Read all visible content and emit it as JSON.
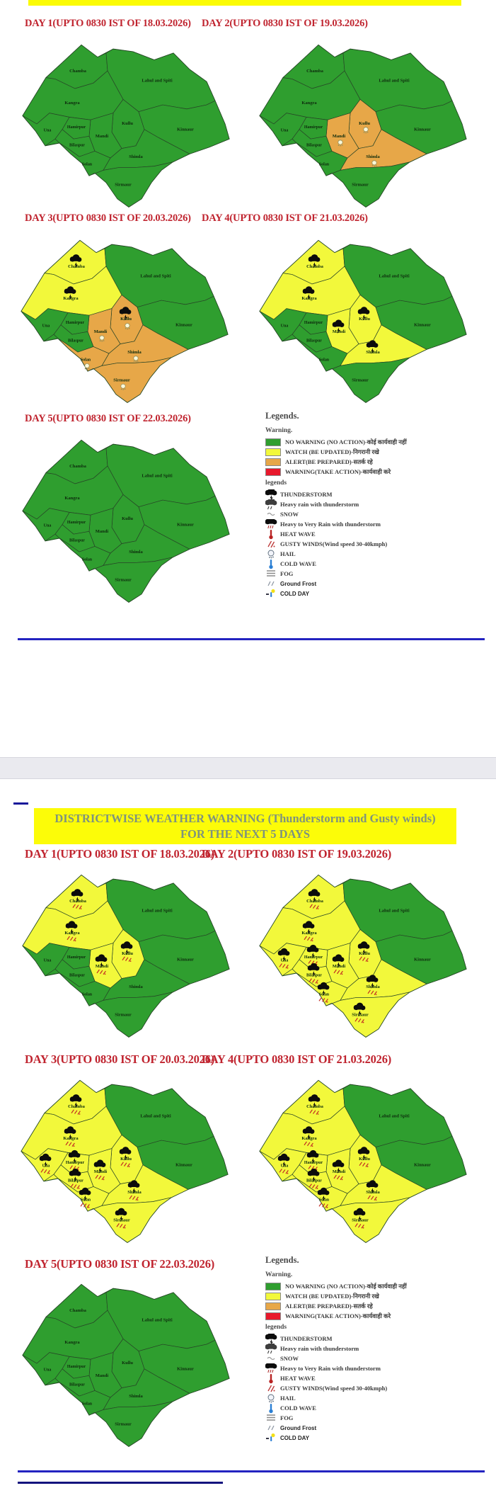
{
  "colors": {
    "green": "#2f9e2f",
    "yellow": "#f2f83b",
    "orange": "#e7a748",
    "red": "#e8182c",
    "map_border": "#1f4d1f",
    "header_red": "#c0242f",
    "banner_bg": "#fcfc08",
    "banner_text": "#7e937e",
    "blue_line": "#2323c0",
    "navy_line": "#14147e",
    "separator_gray": "#eaeaef"
  },
  "district_names": {
    "chamba": "Chamba",
    "lahul": "Lahul and Spiti",
    "kangra": "Kangra",
    "kullu": "Kullu",
    "mandi": "Mandi",
    "hamirpur": "Hamirpur",
    "una": "Una",
    "bilaspur": "Bilaspur",
    "bilaspur_short": "Bilaspur",
    "solan": "Solan",
    "shimla": "Shimla",
    "sirmaur": "Sirmaur",
    "kinnaur": "Kinnaur"
  },
  "section1": {
    "maps": [
      {
        "title": "DAY 1(UPTO 0830 IST OF 18.03.2026)",
        "status": {},
        "icons": {}
      },
      {
        "title": "DAY 2(UPTO 0830 IST OF 19.03.2026)",
        "status": {
          "kullu": "orange",
          "mandi": "orange",
          "shimla": "orange"
        },
        "icons": {
          "kullu": "hail",
          "mandi": "hail",
          "shimla": "hail"
        }
      },
      {
        "title": "DAY 3(UPTO 0830 IST OF 20.03.2026)",
        "status": {
          "chamba": "yellow",
          "kangra": "yellow",
          "kullu": "orange",
          "mandi": "orange",
          "shimla": "orange",
          "solan": "orange",
          "sirmaur": "orange"
        },
        "icons": {
          "chamba": "ts",
          "kangra": "ts",
          "kullu": "ts_hail",
          "mandi": "hail",
          "shimla": "hail",
          "solan": "hail",
          "sirmaur": "hail"
        }
      },
      {
        "title": "DAY 4(UPTO 0830 IST OF 21.03.2026)",
        "status": {
          "chamba": "yellow",
          "kangra": "yellow",
          "kullu": "yellow",
          "mandi": "yellow",
          "shimla": "yellow"
        },
        "icons": {
          "chamba": "ts",
          "kangra": "ts",
          "kullu": "ts",
          "mandi": "ts",
          "shimla": "ts"
        }
      },
      {
        "title": "DAY 5(UPTO 0830 IST OF 22.03.2026)",
        "status": {},
        "icons": {}
      }
    ]
  },
  "section2": {
    "banner_line1": "DISTRICTWISE WEATHER WARNING (Thunderstorm and Gusty winds)",
    "banner_line2": "FOR THE NEXT 5 DAYS",
    "maps": [
      {
        "title": "DAY 1(UPTO 0830 IST OF 18.03.2026)",
        "status": {
          "chamba": "yellow",
          "kangra": "yellow",
          "kullu": "yellow",
          "mandi": "yellow"
        },
        "icons": {
          "chamba": "ts_gust",
          "kangra": "ts_gust",
          "kullu": "ts_gust",
          "mandi": "ts_gust"
        }
      },
      {
        "title": "DAY 2(UPTO 0830 IST OF 19.03.2026)",
        "status": {
          "chamba": "yellow",
          "kangra": "yellow",
          "kullu": "yellow",
          "mandi": "yellow",
          "hamirpur": "yellow",
          "una": "yellow",
          "bilaspur": "yellow",
          "solan": "yellow",
          "shimla": "yellow",
          "sirmaur": "yellow"
        },
        "icons": {
          "chamba": "ts_gust",
          "kangra": "ts_gust",
          "kullu": "ts_gust",
          "mandi": "ts_gust",
          "hamirpur": "ts_gust",
          "una": "ts_gust",
          "bilaspur": "ts_gust",
          "solan": "ts_gust",
          "shimla": "ts_gust",
          "sirmaur": "ts_gust"
        }
      },
      {
        "title": "DAY 3(UPTO 0830 IST OF 20.03.2026)",
        "status": {
          "chamba": "yellow",
          "kangra": "yellow",
          "kullu": "yellow",
          "mandi": "yellow",
          "hamirpur": "yellow",
          "una": "yellow",
          "bilaspur": "yellow",
          "solan": "yellow",
          "shimla": "yellow",
          "sirmaur": "yellow"
        },
        "icons": {
          "chamba": "ts_gust",
          "kangra": "ts_gust",
          "kullu": "ts_gust",
          "mandi": "ts_gust",
          "hamirpur": "ts_gust",
          "una": "ts_gust",
          "bilaspur": "ts_gust",
          "solan": "ts_gust",
          "shimla": "ts_gust",
          "sirmaur": "ts_gust"
        }
      },
      {
        "title": "DAY 4(UPTO 0830 IST OF 21.03.2026)",
        "status": {
          "chamba": "yellow",
          "kangra": "yellow",
          "kullu": "yellow",
          "mandi": "yellow",
          "hamirpur": "yellow",
          "una": "yellow",
          "bilaspur": "yellow",
          "solan": "yellow",
          "shimla": "yellow",
          "sirmaur": "yellow"
        },
        "icons": {
          "chamba": "ts_gust",
          "kangra": "ts_gust",
          "kullu": "ts_gust",
          "mandi": "ts_gust",
          "hamirpur": "ts_gust",
          "una": "ts_gust",
          "bilaspur": "ts_gust",
          "solan": "ts_gust",
          "shimla": "ts_gust",
          "sirmaur": "ts_gust"
        }
      },
      {
        "title": "DAY 5(UPTO 0830 IST OF 22.03.2026)",
        "status": {},
        "icons": {}
      }
    ]
  },
  "legend": {
    "title": "Legends.",
    "warning_title": "Warning.",
    "warning_items": [
      {
        "color_key": "green",
        "label": "NO WARNING (NO ACTION)-कोई कार्यवाही नहीं"
      },
      {
        "color_key": "yellow",
        "label": "WATCH (BE UPDATED)-निगरानी रखे"
      },
      {
        "color_key": "orange",
        "label": "ALERT(BE PREPARED)-सतर्क रहे"
      },
      {
        "color_key": "red",
        "label": "WARNING(TAKE ACTION)-कार्यवाही करे"
      }
    ],
    "symbols_title": "legends",
    "symbol_items": [
      {
        "icon": "thunderstorm",
        "label": "THUNDERSTORM"
      },
      {
        "icon": "heavy-rain",
        "label": "Heavy rain with thunderstorm"
      },
      {
        "icon": "snow",
        "label": "SNOW"
      },
      {
        "icon": "heavy-very-rain",
        "label": "Heavy to Very Rain with thunderstorm"
      },
      {
        "icon": "heat-wave",
        "label": "HEAT WAVE"
      },
      {
        "icon": "gusty-winds",
        "label": "GUSTY WINDS(Wind speed 30-40kmph)"
      },
      {
        "icon": "hail",
        "label": "HAIL"
      },
      {
        "icon": "cold-wave",
        "label": "COLD WAVE"
      },
      {
        "icon": "fog",
        "label": "FOG"
      },
      {
        "icon": "ground-frost",
        "label": "Ground Frost",
        "sans": true
      },
      {
        "icon": "cold-day",
        "label": "COLD  DAY",
        "sans": true
      }
    ]
  }
}
